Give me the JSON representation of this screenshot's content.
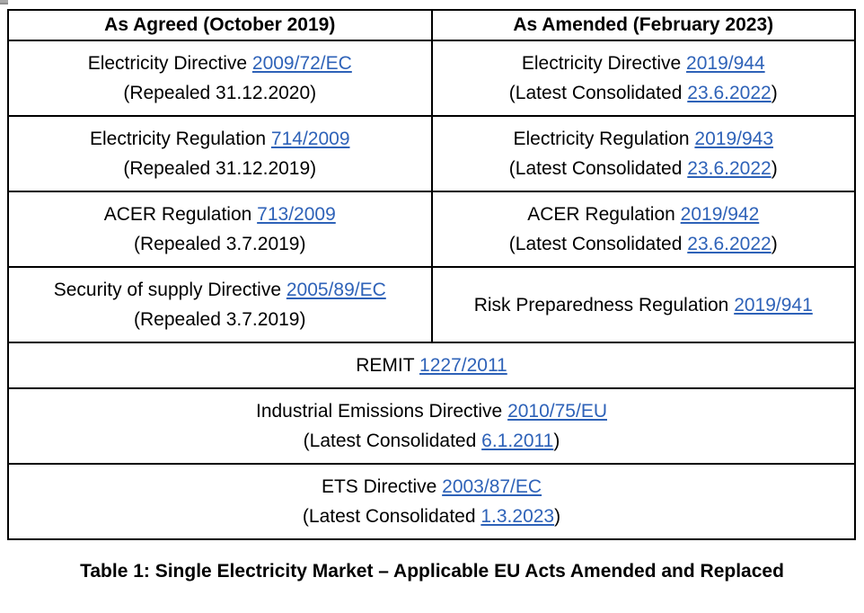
{
  "colors": {
    "link": "#2E62B8",
    "border": "#000000",
    "text": "#000000",
    "background": "#FFFFFF"
  },
  "table": {
    "header": {
      "left": "As Agreed (October 2019)",
      "right": "As Amended (February 2023)"
    },
    "rows": {
      "electricity_directive": {
        "old": {
          "pre": "Electricity Directive ",
          "link": "2009/72/EC",
          "note": "(Repealed 31.12.2020)"
        },
        "new": {
          "pre": "Electricity Directive ",
          "link": "2019/944",
          "note_pre": "(Latest Consolidated ",
          "note_link": "23.6.2022",
          "note_post": ")"
        }
      },
      "electricity_regulation": {
        "old": {
          "pre": "Electricity Regulation ",
          "link": "714/2009",
          "note": "(Repealed 31.12.2019)"
        },
        "new": {
          "pre": "Electricity Regulation ",
          "link": "2019/943",
          "note_pre": "(Latest Consolidated ",
          "note_link": "23.6.2022",
          "note_post": ")"
        }
      },
      "acer_regulation": {
        "old": {
          "pre": "ACER Regulation ",
          "link": "713/2009",
          "note": "(Repealed 3.7.2019)"
        },
        "new": {
          "pre": "ACER Regulation ",
          "link": "2019/942",
          "note_pre": "(Latest Consolidated ",
          "note_link": "23.6.2022",
          "note_post": ")"
        }
      },
      "security_supply": {
        "old": {
          "pre": "Security of supply Directive ",
          "link": "2005/89/EC",
          "note": "(Repealed 3.7.2019)"
        },
        "new": {
          "pre": "Risk Preparedness Regulation ",
          "link": "2019/941"
        }
      },
      "remit": {
        "pre": "REMIT ",
        "link": "1227/2011"
      },
      "industrial_emissions": {
        "pre": "Industrial Emissions Directive ",
        "link": "2010/75/EU",
        "note_pre": "(Latest Consolidated ",
        "note_link": "6.1.2011",
        "note_post": ")"
      },
      "ets": {
        "pre": "ETS Directive ",
        "link": "2003/87/EC",
        "note_pre": "(Latest Consolidated ",
        "note_link": "1.3.2023",
        "note_post": ")"
      }
    }
  },
  "caption": "Table 1: Single Electricity Market – Applicable EU Acts Amended and Replaced"
}
